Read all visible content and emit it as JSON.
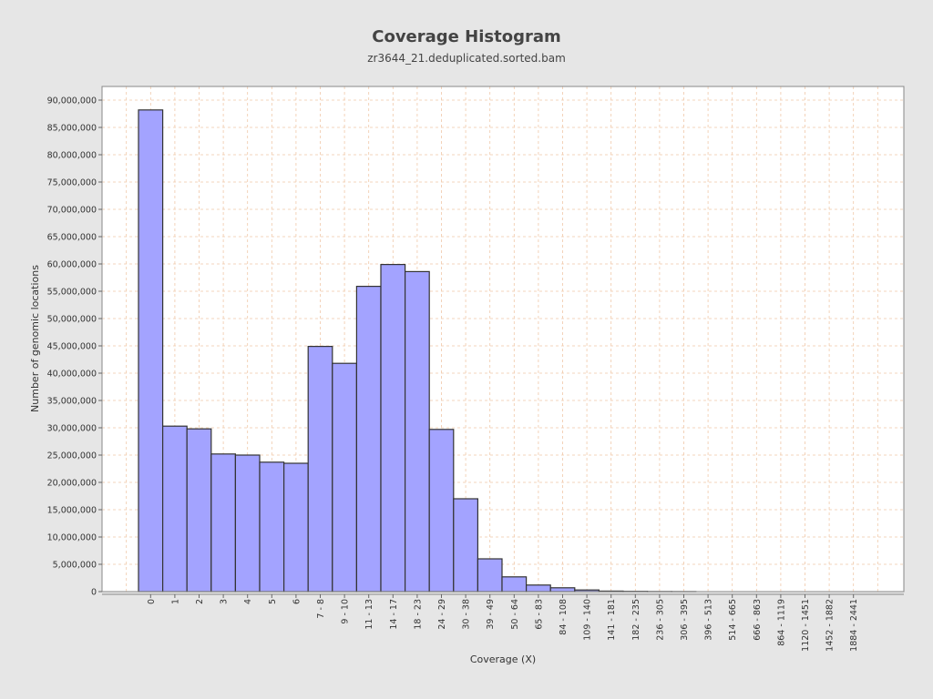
{
  "chart_data": {
    "type": "bar",
    "title": "Coverage Histogram",
    "subtitle": "zr3644_21.deduplicated.sorted.bam",
    "xlabel": "Coverage (X)",
    "ylabel": "Number of genomic locations",
    "ylim": [
      0,
      92500000
    ],
    "yticks": [
      0,
      5000000,
      10000000,
      15000000,
      20000000,
      25000000,
      30000000,
      35000000,
      40000000,
      45000000,
      50000000,
      55000000,
      60000000,
      65000000,
      70000000,
      75000000,
      80000000,
      85000000,
      90000000
    ],
    "ytick_labels": [
      "0",
      "5,000,000",
      "10,000,000",
      "15,000,000",
      "20,000,000",
      "25,000,000",
      "30,000,000",
      "35,000,000",
      "40,000,000",
      "45,000,000",
      "50,000,000",
      "55,000,000",
      "60,000,000",
      "65,000,000",
      "70,000,000",
      "75,000,000",
      "80,000,000",
      "85,000,000",
      "90,000,000"
    ],
    "categories": [
      "0",
      "1",
      "2",
      "3",
      "4",
      "5",
      "6",
      "7 - 8",
      "9 - 10",
      "11 - 13",
      "14 - 17",
      "18 - 23",
      "24 - 29",
      "30 - 38",
      "39 - 49",
      "50 - 64",
      "65 - 83",
      "84 - 108",
      "109 - 140",
      "141 - 181",
      "182 - 235",
      "236 - 305",
      "306 - 395",
      "396 - 513",
      "514 - 665",
      "666 - 863",
      "864 - 1119",
      "1120 - 1451",
      "1452 - 1882",
      "1884 - 2441"
    ],
    "values": [
      88200000,
      30300000,
      29800000,
      25200000,
      25000000,
      23700000,
      23500000,
      44900000,
      41800000,
      55900000,
      59900000,
      58600000,
      29700000,
      17000000,
      6000000,
      2700000,
      1200000,
      700000,
      300000,
      100000,
      50000,
      20000,
      10000,
      0,
      0,
      0,
      0,
      0,
      0,
      0
    ],
    "grid": true,
    "colors": {
      "bar_fill": "#a3a3ff",
      "bar_stroke": "#333333",
      "plot_bg": "#ffffff",
      "grid": "#f0c8a8",
      "page_bg": "#e6e6e6"
    }
  }
}
